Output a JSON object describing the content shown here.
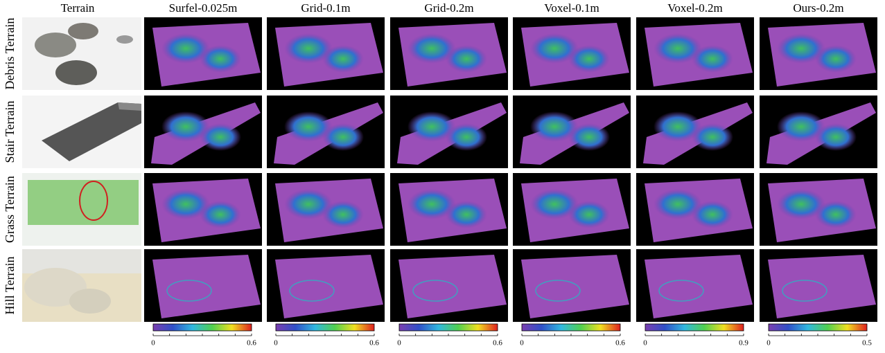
{
  "header": {
    "terrain": "Terrain"
  },
  "columns": [
    {
      "title": "Surfel-0.025m",
      "colorbar": {
        "min": 0,
        "max": 0.6
      }
    },
    {
      "title": "Grid-0.1m",
      "colorbar": {
        "min": 0,
        "max": 0.6
      }
    },
    {
      "title": "Grid-0.2m",
      "colorbar": {
        "min": 0,
        "max": 0.6
      }
    },
    {
      "title": "Voxel-0.1m",
      "colorbar": {
        "min": 0,
        "max": 0.6
      }
    },
    {
      "title": "Voxel-0.2m",
      "colorbar": {
        "min": 0,
        "max": 0.9
      }
    },
    {
      "title": "Ours-0.2m",
      "colorbar": {
        "min": 0,
        "max": 0.5
      }
    }
  ],
  "rows": [
    {
      "label": "Debris Terrain"
    },
    {
      "label": "Stair Terrain"
    },
    {
      "label": "Grass Terrain"
    },
    {
      "label": "Hill Terrain"
    }
  ]
}
